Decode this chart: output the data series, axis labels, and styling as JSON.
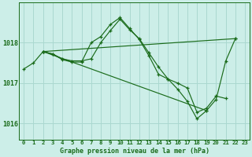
{
  "background_color": "#cceee8",
  "grid_color": "#aad8d0",
  "line_color": "#1a6b1a",
  "title": "Graphe pression niveau de la mer (hPa)",
  "ylabel_ticks": [
    1016,
    1017,
    1018
  ],
  "xlim": [
    -0.5,
    23.5
  ],
  "ylim": [
    1015.6,
    1019.0
  ],
  "xticks": [
    0,
    1,
    2,
    3,
    4,
    5,
    6,
    7,
    8,
    9,
    10,
    11,
    12,
    13,
    14,
    15,
    16,
    17,
    18,
    19,
    20,
    21,
    22,
    23
  ],
  "series": [
    {
      "x": [
        0,
        1,
        2,
        3,
        4,
        5,
        6,
        7,
        8,
        9,
        10,
        11,
        12,
        13,
        14,
        15,
        16,
        17,
        18,
        19,
        20,
        21,
        22
      ],
      "y": [
        1017.35,
        1017.5,
        1017.78,
        1017.72,
        1017.6,
        1017.55,
        1017.55,
        1017.6,
        1018.0,
        1018.3,
        1018.58,
        1018.32,
        1018.1,
        1017.75,
        1017.4,
        1017.1,
        1016.85,
        1016.55,
        1016.12,
        1016.32,
        1016.6,
        1017.55,
        1018.1
      ]
    },
    {
      "x": [
        2,
        22
      ],
      "y": [
        1017.78,
        1018.1
      ]
    },
    {
      "x": [
        2,
        3,
        4,
        5,
        6,
        7,
        8,
        9,
        10,
        11,
        12,
        13,
        14,
        15,
        16,
        17,
        18,
        19,
        20,
        21
      ],
      "y": [
        1017.78,
        1017.72,
        1017.58,
        1017.52,
        1017.52,
        1018.0,
        1018.15,
        1018.45,
        1018.62,
        1018.35,
        1018.08,
        1017.68,
        1017.22,
        1017.1,
        1017.0,
        1016.88,
        1016.28,
        1016.38,
        1016.68,
        1016.62
      ]
    },
    {
      "x": [
        2,
        19
      ],
      "y": [
        1017.78,
        1016.32
      ]
    }
  ]
}
